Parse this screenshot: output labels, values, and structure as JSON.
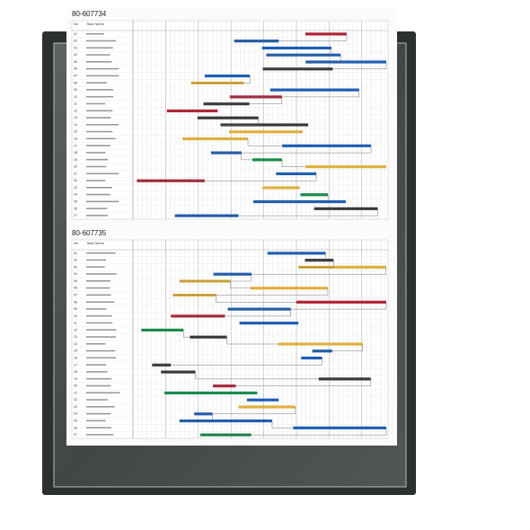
{
  "charts": [
    {
      "title": "80-607734",
      "headers": {
        "number": "No",
        "task": "Task Name"
      },
      "rows": [
        "01",
        "02",
        "03",
        "04",
        "05",
        "06",
        "07",
        "08",
        "09",
        "10",
        "11",
        "12",
        "13",
        "14",
        "15",
        "16",
        "17",
        "18",
        "19",
        "20",
        "21",
        "22",
        "23",
        "24",
        "25",
        "26",
        "27"
      ]
    },
    {
      "title": "80-607735",
      "headers": {
        "number": "No",
        "task": "Task Name"
      },
      "rows": [
        "01",
        "02",
        "03",
        "04",
        "05",
        "06",
        "07",
        "08",
        "09",
        "10",
        "11",
        "12",
        "13",
        "14",
        "15",
        "16",
        "17",
        "18",
        "19",
        "20",
        "21",
        "22",
        "23",
        "24",
        "25",
        "26",
        "27"
      ]
    }
  ]
}
